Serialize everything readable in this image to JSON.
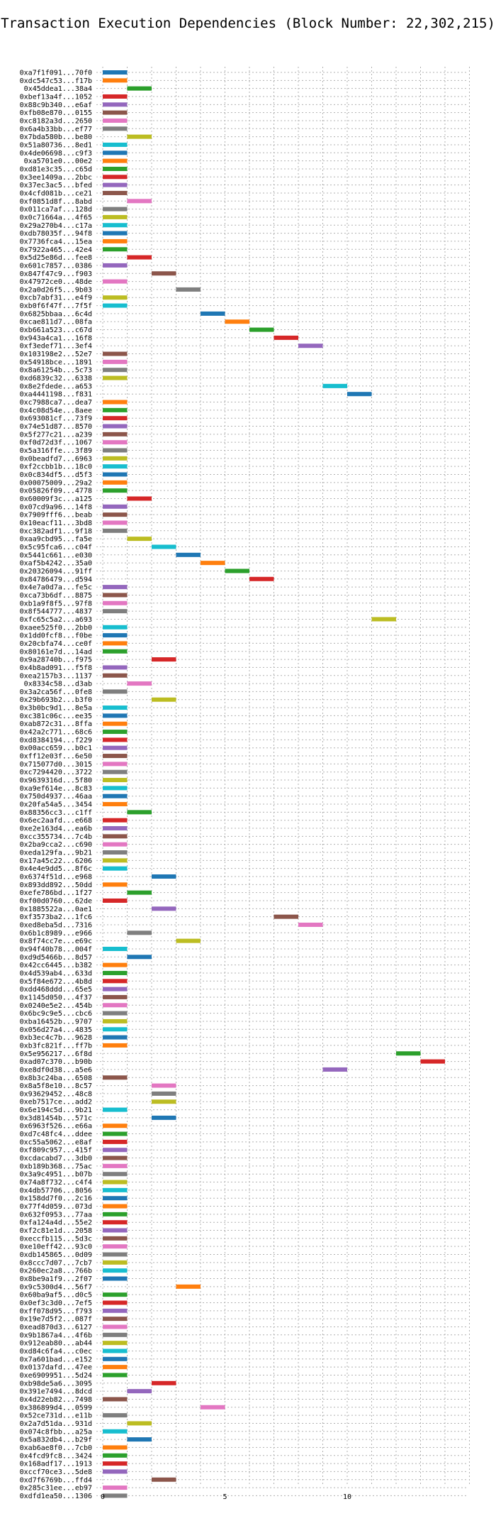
{
  "chart_data": {
    "type": "gantt",
    "title": "Transaction Execution Dependencies (Block Number: 22,302,215)",
    "xlabel": "",
    "ylabel": "",
    "xlim": [
      0,
      15
    ],
    "xticks": [
      0,
      5,
      10
    ],
    "grid": true,
    "grid_style": "dotted",
    "bar_width": 1,
    "palette": [
      "#1f77b4",
      "#ff7f0e",
      "#2ca02c",
      "#d62728",
      "#9467bd",
      "#8c564b",
      "#e377c2",
      "#7f7f7f",
      "#bcbd22",
      "#17becf"
    ],
    "transactions": [
      {
        "label": "0xa7f1f091...70f0",
        "start": 0
      },
      {
        "label": "0xdc547c53...f17b",
        "start": 0
      },
      {
        "label": "0x45ddea1...38a4",
        "start": 1
      },
      {
        "label": "0xbef13a4f...1052",
        "start": 0
      },
      {
        "label": "0x88c9b340...e6af",
        "start": 0
      },
      {
        "label": "0xfb08e870...0155",
        "start": 0
      },
      {
        "label": "0xc8182a3d...2650",
        "start": 0
      },
      {
        "label": "0x6a4b33bb...ef77",
        "start": 0
      },
      {
        "label": "0x7bda580b...be80",
        "start": 1
      },
      {
        "label": "0x51a80736...8ed1",
        "start": 0
      },
      {
        "label": "0x4de06698...c9f3",
        "start": 0
      },
      {
        "label": "0xa5701e0...00e2",
        "start": 0
      },
      {
        "label": "0xd81e3c35...c65d",
        "start": 0
      },
      {
        "label": "0x3ee1409a...2bbc",
        "start": 0
      },
      {
        "label": "0x37ec3ac5...bfed",
        "start": 0
      },
      {
        "label": "0x4cfd081b...ce21",
        "start": 0
      },
      {
        "label": "0xf0851d8f...8abd",
        "start": 1
      },
      {
        "label": "0x011ca7af...128d",
        "start": 0
      },
      {
        "label": "0x0c71664a...4f65",
        "start": 0
      },
      {
        "label": "0x29a270b4...c17a",
        "start": 0
      },
      {
        "label": "0xdb78035f...94f8",
        "start": 0
      },
      {
        "label": "0x7736fca4...15ea",
        "start": 0
      },
      {
        "label": "0x7922a465...42e4",
        "start": 0
      },
      {
        "label": "0x5d25e86d...fee8",
        "start": 1
      },
      {
        "label": "0x601c7857...0386",
        "start": 0
      },
      {
        "label": "0x847f47c9...f903",
        "start": 2
      },
      {
        "label": "0x47972ce0...48de",
        "start": 0
      },
      {
        "label": "0x2a0d26f5...9b03",
        "start": 3
      },
      {
        "label": "0xcb7abf31...e4f9",
        "start": 0
      },
      {
        "label": "0xb0f6f47f...7f5f",
        "start": 0
      },
      {
        "label": "0x6825bbaa...6c4d",
        "start": 4
      },
      {
        "label": "0xcae811d7...08fa",
        "start": 5
      },
      {
        "label": "0xb661a523...c67d",
        "start": 6
      },
      {
        "label": "0x943a4ca1...16f8",
        "start": 7
      },
      {
        "label": "0xf3edef71...3ef4",
        "start": 8
      },
      {
        "label": "0x103198e2...52e7",
        "start": 0
      },
      {
        "label": "0x54918bce...1891",
        "start": 0
      },
      {
        "label": "0x8a61254b...5c73",
        "start": 0
      },
      {
        "label": "0xd6839c32...6338",
        "start": 0
      },
      {
        "label": "0x8e2fdede...a653",
        "start": 9
      },
      {
        "label": "0xa4441198...f831",
        "start": 10
      },
      {
        "label": "0xc7988ca7...dea7",
        "start": 0
      },
      {
        "label": "0x4c08d54e...8aee",
        "start": 0
      },
      {
        "label": "0x693081cf...73f9",
        "start": 0
      },
      {
        "label": "0x74e51d87...8570",
        "start": 0
      },
      {
        "label": "0x5f277c21...a239",
        "start": 0
      },
      {
        "label": "0xf0d72d3f...1067",
        "start": 0
      },
      {
        "label": "0x5a316ffe...3f89",
        "start": 0
      },
      {
        "label": "0x0beadfd7...6963",
        "start": 0
      },
      {
        "label": "0xf2ccbb1b...18c0",
        "start": 0
      },
      {
        "label": "0x0c834df5...d5f3",
        "start": 0
      },
      {
        "label": "0x00075009...29a2",
        "start": 0
      },
      {
        "label": "0x05826f09...4778",
        "start": 0
      },
      {
        "label": "0x60009f3c...a125",
        "start": 1
      },
      {
        "label": "0x07cd9a96...14f8",
        "start": 0
      },
      {
        "label": "0x7909fff6...beab",
        "start": 0
      },
      {
        "label": "0x10eacf11...3bd8",
        "start": 0
      },
      {
        "label": "0xc382adf1...9f18",
        "start": 0
      },
      {
        "label": "0xaa9cbd95...fa5e",
        "start": 1
      },
      {
        "label": "0x5c95fca6...c04f",
        "start": 2
      },
      {
        "label": "0x5441c661...e030",
        "start": 3
      },
      {
        "label": "0xaf5b4242...35a0",
        "start": 4
      },
      {
        "label": "0x20326094...91ff",
        "start": 5
      },
      {
        "label": "0x84786479...d594",
        "start": 6
      },
      {
        "label": "0x4e7a0d7a...fe5c",
        "start": 0
      },
      {
        "label": "0xca73b6df...8875",
        "start": 0
      },
      {
        "label": "0xb1a9f8f5...97f8",
        "start": 0
      },
      {
        "label": "0x8f544777...4837",
        "start": 0
      },
      {
        "label": "0xfc65c5a2...a693",
        "start": 11
      },
      {
        "label": "0xaee525f0...2bb0",
        "start": 0
      },
      {
        "label": "0x1dd0fcf8...f0be",
        "start": 0
      },
      {
        "label": "0x20cbfa74...ce0f",
        "start": 0
      },
      {
        "label": "0x80161e7d...14ad",
        "start": 0
      },
      {
        "label": "0x9a28740b...f975",
        "start": 2
      },
      {
        "label": "0x4b8ad091...f5f8",
        "start": 0
      },
      {
        "label": "0xea2157b3...1137",
        "start": 0
      },
      {
        "label": "0x8334c58...d3ab",
        "start": 1
      },
      {
        "label": "0x3a2ca56f...0fe8",
        "start": 0
      },
      {
        "label": "0x29b693b2...b3f0",
        "start": 2
      },
      {
        "label": "0x3b0bc9d1...8e5a",
        "start": 0
      },
      {
        "label": "0xc381c06c...ee35",
        "start": 0
      },
      {
        "label": "0xab872c31...8ffa",
        "start": 0
      },
      {
        "label": "0x42a2c771...68c6",
        "start": 0
      },
      {
        "label": "0xd8384194...f229",
        "start": 0
      },
      {
        "label": "0x00acc659...b0c1",
        "start": 0
      },
      {
        "label": "0xff12e03f...6e50",
        "start": 0
      },
      {
        "label": "0x715077d0...3015",
        "start": 0
      },
      {
        "label": "0xc7294420...3722",
        "start": 0
      },
      {
        "label": "0x9639316d...5f80",
        "start": 0
      },
      {
        "label": "0xa9ef614e...8c83",
        "start": 0
      },
      {
        "label": "0x750d4937...46aa",
        "start": 0
      },
      {
        "label": "0x20fa54a5...3454",
        "start": 0
      },
      {
        "label": "0x88356cc3...c1ff",
        "start": 1
      },
      {
        "label": "0x6ec2aafd...e668",
        "start": 0
      },
      {
        "label": "0xe2e163d4...ea6b",
        "start": 0
      },
      {
        "label": "0xcc355734...7c4b",
        "start": 0
      },
      {
        "label": "0x2ba9cca2...c690",
        "start": 0
      },
      {
        "label": "0xeda129fa...9b21",
        "start": 0
      },
      {
        "label": "0x17a45c22...6206",
        "start": 0
      },
      {
        "label": "0x4e4e9dd5...8f6c",
        "start": 0
      },
      {
        "label": "0x6374f51d...e968",
        "start": 2
      },
      {
        "label": "0x893dd892...50dd",
        "start": 0
      },
      {
        "label": "0xefe786bd...1f27",
        "start": 1
      },
      {
        "label": "0xf00d0760...62de",
        "start": 0
      },
      {
        "label": "0x1885522a...0ae1",
        "start": 2
      },
      {
        "label": "0xf3573ba2...1fc6",
        "start": 7
      },
      {
        "label": "0xed8eba5d...7316",
        "start": 8
      },
      {
        "label": "0x6b1c8989...e966",
        "start": 1
      },
      {
        "label": "0x8f74cc7e...e69c",
        "start": 3
      },
      {
        "label": "0x94f40b78...004f",
        "start": 0
      },
      {
        "label": "0xd9d5466b...8d57",
        "start": 1
      },
      {
        "label": "0x42cc6445...b382",
        "start": 0
      },
      {
        "label": "0x4d539ab4...633d",
        "start": 0
      },
      {
        "label": "0x5f84e672...4b8d",
        "start": 0
      },
      {
        "label": "0xdd468ddd...65e5",
        "start": 0
      },
      {
        "label": "0x1145d050...4f37",
        "start": 0
      },
      {
        "label": "0x0240e5e2...454b",
        "start": 0
      },
      {
        "label": "0x6bc9c9e5...cbc6",
        "start": 0
      },
      {
        "label": "0xba16452b...9707",
        "start": 0
      },
      {
        "label": "0x056d27a4...4835",
        "start": 0
      },
      {
        "label": "0xb3ec4c7b...9628",
        "start": 0
      },
      {
        "label": "0xb3fc821f...ff7b",
        "start": 0
      },
      {
        "label": "0x5e956217...6f8d",
        "start": 12
      },
      {
        "label": "0xad07c370...b90b",
        "start": 13
      },
      {
        "label": "0xe8df0d38...a5e6",
        "start": 9
      },
      {
        "label": "0x8b3c24ba...6508",
        "start": 0
      },
      {
        "label": "0x8a5f8e10...8c57",
        "start": 2
      },
      {
        "label": "0x93629452...48c8",
        "start": 2
      },
      {
        "label": "0xeb7517ce...add2",
        "start": 2
      },
      {
        "label": "0x6e194c5d...9b21",
        "start": 0
      },
      {
        "label": "0x3d81454b...571c",
        "start": 2
      },
      {
        "label": "0x6963f526...e66a",
        "start": 0
      },
      {
        "label": "0xd7c48fc4...ddee",
        "start": 0
      },
      {
        "label": "0xc55a5062...e8af",
        "start": 0
      },
      {
        "label": "0xf809c957...415f",
        "start": 0
      },
      {
        "label": "0xcdacabd7...3db0",
        "start": 0
      },
      {
        "label": "0xb189b368...75ac",
        "start": 0
      },
      {
        "label": "0x3a9c4951...b07b",
        "start": 0
      },
      {
        "label": "0x74a8f732...c4f4",
        "start": 0
      },
      {
        "label": "0x4db57706...8056",
        "start": 0
      },
      {
        "label": "0x158dd7f0...2c16",
        "start": 0
      },
      {
        "label": "0x77f4d059...073d",
        "start": 0
      },
      {
        "label": "0x632f0953...77aa",
        "start": 0
      },
      {
        "label": "0xfa124a4d...55e2",
        "start": 0
      },
      {
        "label": "0xf2c81e1d...2058",
        "start": 0
      },
      {
        "label": "0xeccfb115...5d3c",
        "start": 0
      },
      {
        "label": "0xe10eff42...93c0",
        "start": 0
      },
      {
        "label": "0xdb145865...0d09",
        "start": 0
      },
      {
        "label": "0x8ccc7d07...7cb7",
        "start": 0
      },
      {
        "label": "0x260ec2a8...766b",
        "start": 0
      },
      {
        "label": "0x8be9a1f9...2f07",
        "start": 0
      },
      {
        "label": "0x9c5300d4...56f7",
        "start": 3
      },
      {
        "label": "0x60ba9af5...d0c5",
        "start": 0
      },
      {
        "label": "0x0ef3c3d0...7ef5",
        "start": 0
      },
      {
        "label": "0xff078d95...f793",
        "start": 0
      },
      {
        "label": "0x19e7d5f2...087f",
        "start": 0
      },
      {
        "label": "0xead870d3...6127",
        "start": 0
      },
      {
        "label": "0x9b1867a4...4f6b",
        "start": 0
      },
      {
        "label": "0x912eab80...ab44",
        "start": 0
      },
      {
        "label": "0xd84c6fa4...c0ec",
        "start": 0
      },
      {
        "label": "0x7a601bad...e152",
        "start": 0
      },
      {
        "label": "0x0137dafd...47ee",
        "start": 0
      },
      {
        "label": "0xe6909951...5d24",
        "start": 0
      },
      {
        "label": "0xb98de5a6...3095",
        "start": 2
      },
      {
        "label": "0x391e7494...8dcd",
        "start": 1
      },
      {
        "label": "0x4d22eb82...7498",
        "start": 0
      },
      {
        "label": "0x386899d4...0599",
        "start": 4
      },
      {
        "label": "0x52ce731d...e11b",
        "start": 0
      },
      {
        "label": "0x2a7d51da...931d",
        "start": 1
      },
      {
        "label": "0x074c8fbb...a25a",
        "start": 0
      },
      {
        "label": "0x5a832db4...b29f",
        "start": 1
      },
      {
        "label": "0xab6ae8f0...7cb0",
        "start": 0
      },
      {
        "label": "0x4fcd9fc8...3424",
        "start": 0
      },
      {
        "label": "0x168adf17...1913",
        "start": 0
      },
      {
        "label": "0xccf70ce3...5de8",
        "start": 0
      },
      {
        "label": "0xd7f6769b...ffd4",
        "start": 2
      },
      {
        "label": "0x285c31ee...eb97",
        "start": 0
      },
      {
        "label": "0xdfd1ea50...1306",
        "start": 0
      }
    ]
  }
}
